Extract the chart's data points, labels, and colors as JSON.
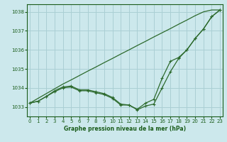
{
  "title": "Graphe pression niveau de la mer (hPa)",
  "hours": [
    0,
    1,
    2,
    3,
    4,
    5,
    6,
    7,
    8,
    9,
    10,
    11,
    12,
    13,
    14,
    15,
    16,
    17,
    18,
    19,
    20,
    21,
    22,
    23
  ],
  "line_straight": [
    1033.2,
    1033.45,
    1033.7,
    1033.95,
    1034.2,
    1034.42,
    1034.65,
    1034.88,
    1035.1,
    1035.33,
    1035.55,
    1035.78,
    1036.0,
    1036.23,
    1036.45,
    1036.68,
    1036.9,
    1037.12,
    1037.35,
    1037.57,
    1037.8,
    1038.0,
    1038.1,
    1038.1
  ],
  "line_main": [
    1033.2,
    1033.3,
    1033.55,
    1033.8,
    1034.0,
    1034.05,
    1033.85,
    1033.85,
    1033.75,
    1033.65,
    1033.45,
    1033.1,
    1033.1,
    1032.85,
    1033.05,
    1033.15,
    1034.0,
    1034.85,
    1035.55,
    1036.0,
    1036.6,
    1037.1,
    1037.75,
    1038.1
  ],
  "line_upper": [
    1033.2,
    1033.3,
    1033.55,
    1033.85,
    1034.05,
    1034.1,
    1033.9,
    1033.9,
    1033.8,
    1033.7,
    1033.5,
    1033.15,
    1033.1,
    1032.88,
    1033.2,
    1033.4,
    1034.5,
    1035.4,
    1035.6,
    1036.0,
    1036.6,
    1037.1,
    1037.75,
    1038.1
  ],
  "line_color": "#2d6a2d",
  "bg_color": "#cce8ec",
  "grid_color": "#aacfd4",
  "text_color": "#1a5c1a",
  "ylim_min": 1032.5,
  "ylim_max": 1038.4,
  "yticks": [
    1033,
    1034,
    1035,
    1036,
    1037,
    1038
  ],
  "xticks": [
    0,
    1,
    2,
    3,
    4,
    5,
    6,
    7,
    8,
    9,
    10,
    11,
    12,
    13,
    14,
    15,
    16,
    17,
    18,
    19,
    20,
    21,
    22,
    23
  ]
}
